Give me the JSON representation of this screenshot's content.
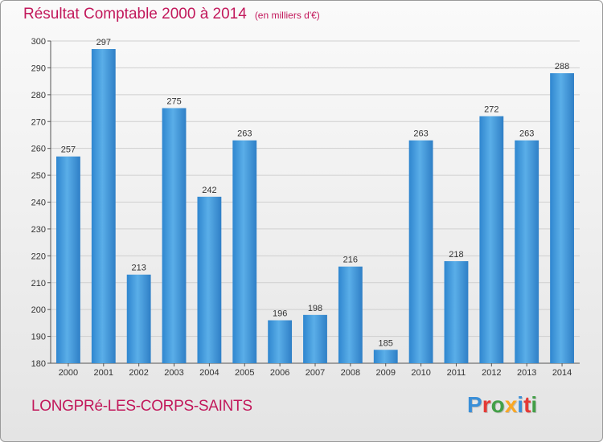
{
  "header": {
    "title": "Résultat Comptable 2000 à 2014",
    "subtitle": "(en milliers d'€)"
  },
  "footer": {
    "place": "LONGPRé-LES-CORPS-SAINTS",
    "logo_text": "Proxiti",
    "logo_letters": [
      {
        "ch": "P",
        "color": "#3a8fd8"
      },
      {
        "ch": "r",
        "color": "#e53935"
      },
      {
        "ch": "o",
        "color": "#43a047"
      },
      {
        "ch": "x",
        "color": "#f9a825"
      },
      {
        "ch": "i",
        "color": "#3a8fd8"
      },
      {
        "ch": "t",
        "color": "#e53935"
      },
      {
        "ch": "i",
        "color": "#43a047"
      }
    ]
  },
  "chart_data": {
    "type": "bar",
    "categories": [
      "2000",
      "2001",
      "2002",
      "2003",
      "2004",
      "2005",
      "2006",
      "2007",
      "2008",
      "2009",
      "2010",
      "2011",
      "2012",
      "2013",
      "2014"
    ],
    "values": [
      257,
      297,
      213,
      275,
      242,
      263,
      196,
      198,
      216,
      185,
      263,
      218,
      272,
      263,
      288
    ],
    "ylim": [
      180,
      300
    ],
    "yticks": [
      180,
      190,
      200,
      210,
      220,
      230,
      240,
      250,
      260,
      270,
      280,
      290,
      300
    ],
    "grid": true,
    "bar_color": "#4aa0e0",
    "bar_color_dark": "#2a78c0"
  }
}
